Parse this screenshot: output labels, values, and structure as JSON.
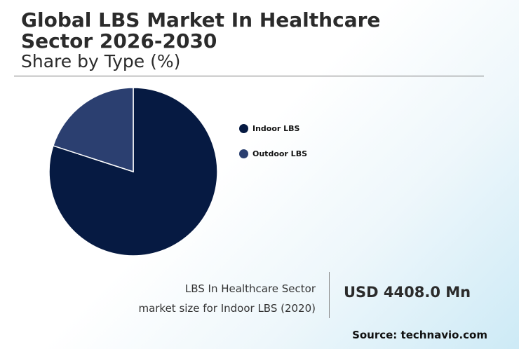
{
  "header": {
    "title": "Global LBS Market In Healthcare Sector 2026-2030",
    "subtitle": "Share by Type (%)"
  },
  "chart_data": {
    "type": "pie",
    "categories": [
      "Indoor LBS",
      "Outdoor LBS"
    ],
    "values": [
      80,
      20
    ],
    "colors": [
      "#061a42",
      "#2b3f70"
    ],
    "legend_position": "right"
  },
  "stat": {
    "label_line1": "LBS In Healthcare Sector",
    "label_line2": "market size for Indoor LBS (2020)",
    "value": "USD 4408.0 Mn"
  },
  "source": "Source: technavio.com"
}
